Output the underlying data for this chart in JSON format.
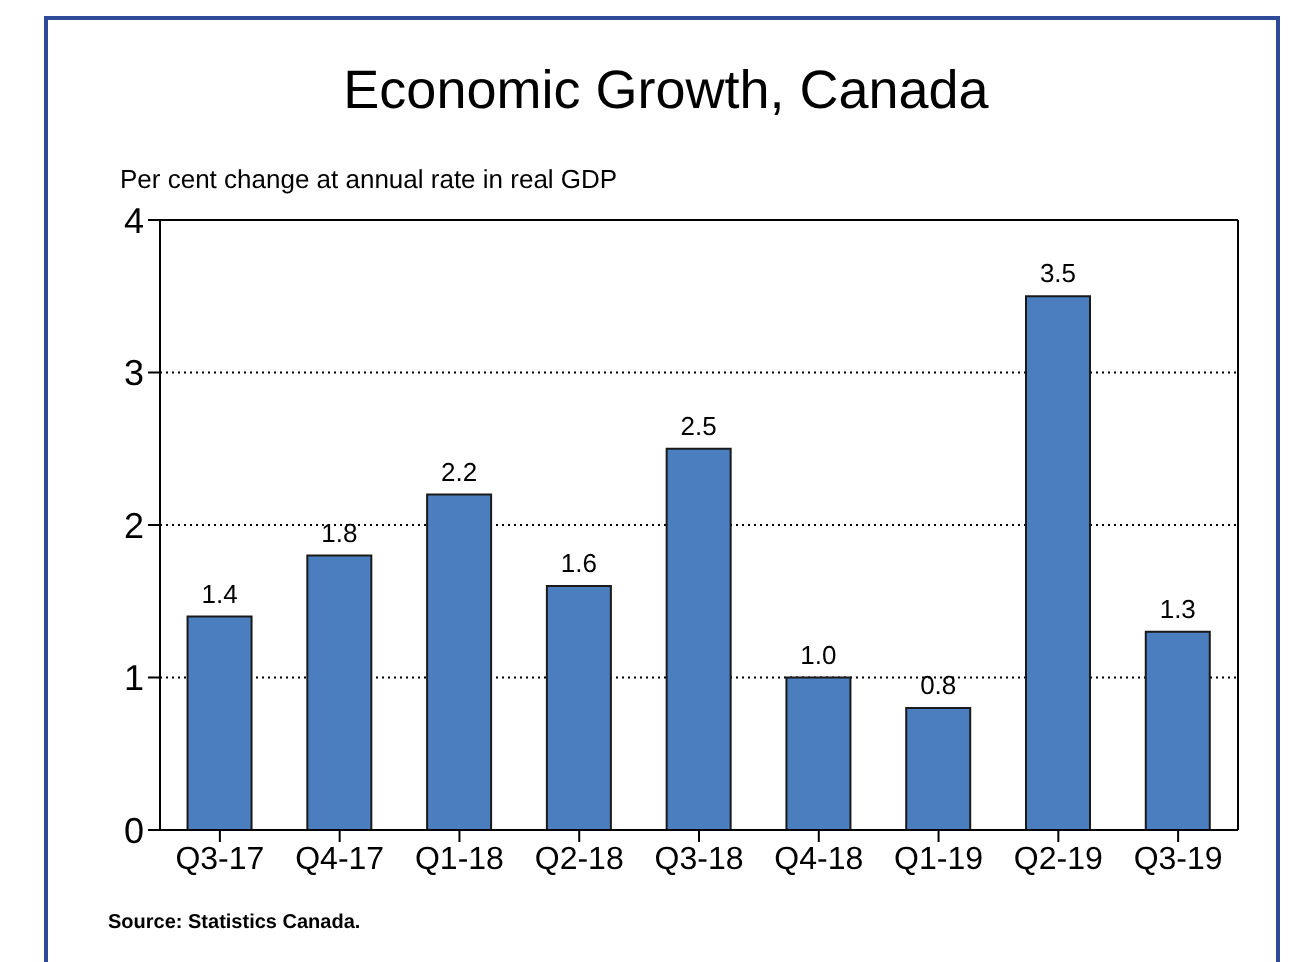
{
  "chart_data": {
    "type": "bar",
    "title": "Economic Growth, Canada",
    "ylabel": "Per cent change at annual rate in real GDP",
    "categories": [
      "Q3-17",
      "Q4-17",
      "Q1-18",
      "Q2-18",
      "Q3-18",
      "Q4-18",
      "Q1-19",
      "Q2-19",
      "Q3-19"
    ],
    "values": [
      1.4,
      1.8,
      2.2,
      1.6,
      2.5,
      1.0,
      0.8,
      3.5,
      1.3
    ],
    "value_labels": [
      "1.4",
      "1.8",
      "2.2",
      "1.6",
      "2.5",
      "1.0",
      "0.8",
      "3.5",
      "1.3"
    ],
    "color": "#4a7ebf",
    "ylim": [
      0,
      4
    ],
    "yticks": [
      0,
      1,
      2,
      3,
      4
    ],
    "grid": "y",
    "legend": false,
    "annotations": [
      "Source: Statistics Canada."
    ]
  }
}
